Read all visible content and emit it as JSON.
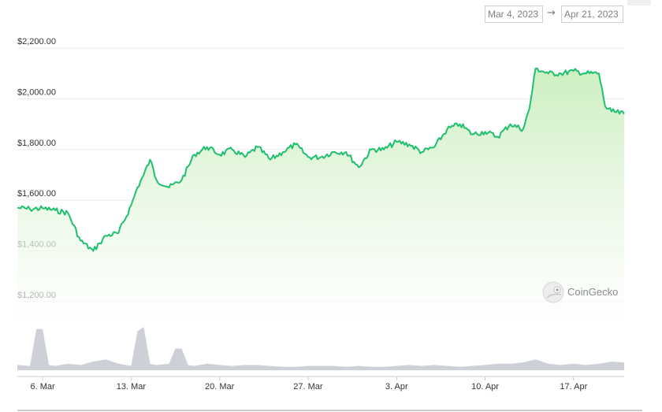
{
  "range_selector": {
    "start": "Mar 4, 2023",
    "arrow": "→",
    "end": "Apr 21, 2023"
  },
  "watermark": "CoinGecko",
  "colors": {
    "line": "#1fbf6e",
    "area_top": "#c9eebd",
    "area_bottom": "#ffffff",
    "volume": "#cdd0d6",
    "grid": "#ececec",
    "axis": "#cccccc"
  },
  "chart_data": {
    "type": "area",
    "title": "",
    "xlabel": "",
    "ylabel": "",
    "x_range": [
      "2023-03-04",
      "2023-04-21"
    ],
    "ylim": [
      1100,
      2250
    ],
    "y_ticks": [
      1200,
      1400,
      1600,
      1800,
      2000,
      2200
    ],
    "y_tick_labels": [
      "$1,200.00",
      "$1,400.00",
      "$1,600.00",
      "$1,800.00",
      "$2,000.00",
      "$2,200.00"
    ],
    "x_ticks": [
      "2023-03-06",
      "2023-03-13",
      "2023-03-20",
      "2023-03-27",
      "2023-04-03",
      "2023-04-10",
      "2023-04-17"
    ],
    "x_tick_labels": [
      "6. Mar",
      "13. Mar",
      "20. Mar",
      "27. Mar",
      "3. Apr",
      "10. Apr",
      "17. Apr"
    ],
    "grid": true,
    "series": [
      {
        "values": [
          [
            "2023-03-04",
            1570
          ],
          [
            "2023-03-05",
            1565
          ],
          [
            "2023-03-06",
            1568
          ],
          [
            "2023-03-07",
            1560
          ],
          [
            "2023-03-08",
            1550
          ],
          [
            "2023-03-09",
            1440
          ],
          [
            "2023-03-10",
            1400
          ],
          [
            "2023-03-10T12",
            1430
          ],
          [
            "2023-03-11",
            1460
          ],
          [
            "2023-03-12",
            1470
          ],
          [
            "2023-03-13",
            1580
          ],
          [
            "2023-03-13T12",
            1650
          ],
          [
            "2023-03-14",
            1700
          ],
          [
            "2023-03-14T12",
            1760
          ],
          [
            "2023-03-15",
            1680
          ],
          [
            "2023-03-16",
            1650
          ],
          [
            "2023-03-17",
            1680
          ],
          [
            "2023-03-18",
            1780
          ],
          [
            "2023-03-19",
            1810
          ],
          [
            "2023-03-20",
            1780
          ],
          [
            "2023-03-21",
            1800
          ],
          [
            "2023-03-22",
            1770
          ],
          [
            "2023-03-23",
            1810
          ],
          [
            "2023-03-24",
            1760
          ],
          [
            "2023-03-25",
            1790
          ],
          [
            "2023-03-26",
            1820
          ],
          [
            "2023-03-27",
            1770
          ],
          [
            "2023-03-28",
            1770
          ],
          [
            "2023-03-29",
            1790
          ],
          [
            "2023-03-30",
            1790
          ],
          [
            "2023-03-31",
            1730
          ],
          [
            "2023-04-01",
            1800
          ],
          [
            "2023-04-02",
            1800
          ],
          [
            "2023-04-03",
            1830
          ],
          [
            "2023-04-04",
            1820
          ],
          [
            "2023-04-05",
            1790
          ],
          [
            "2023-04-06",
            1810
          ],
          [
            "2023-04-07",
            1880
          ],
          [
            "2023-04-08",
            1900
          ],
          [
            "2023-04-09",
            1860
          ],
          [
            "2023-04-10",
            1870
          ],
          [
            "2023-04-11",
            1850
          ],
          [
            "2023-04-12",
            1900
          ],
          [
            "2023-04-13",
            1880
          ],
          [
            "2023-04-13T12",
            1960
          ],
          [
            "2023-04-14",
            2120
          ],
          [
            "2023-04-15",
            2100
          ],
          [
            "2023-04-16",
            2100
          ],
          [
            "2023-04-17",
            2110
          ],
          [
            "2023-04-18",
            2100
          ],
          [
            "2023-04-19",
            2100
          ],
          [
            "2023-04-19T12",
            1970
          ],
          [
            "2023-04-20",
            1950
          ],
          [
            "2023-04-21",
            1940
          ]
        ]
      }
    ],
    "volume": [
      [
        "2023-03-04",
        0.12
      ],
      [
        "2023-03-05",
        0.1
      ],
      [
        "2023-03-05T12",
        0.95
      ],
      [
        "2023-03-06",
        0.95
      ],
      [
        "2023-03-06T12",
        0.12
      ],
      [
        "2023-03-07",
        0.1
      ],
      [
        "2023-03-08",
        0.15
      ],
      [
        "2023-03-09",
        0.12
      ],
      [
        "2023-03-10",
        0.2
      ],
      [
        "2023-03-11",
        0.25
      ],
      [
        "2023-03-12",
        0.15
      ],
      [
        "2023-03-13",
        0.1
      ],
      [
        "2023-03-13T12",
        0.9
      ],
      [
        "2023-03-14",
        1.0
      ],
      [
        "2023-03-14T12",
        0.15
      ],
      [
        "2023-03-15",
        0.12
      ],
      [
        "2023-03-16",
        0.15
      ],
      [
        "2023-03-16T12",
        0.5
      ],
      [
        "2023-03-17",
        0.5
      ],
      [
        "2023-03-17T12",
        0.12
      ],
      [
        "2023-03-18",
        0.1
      ],
      [
        "2023-03-19",
        0.15
      ],
      [
        "2023-03-20",
        0.12
      ],
      [
        "2023-03-21",
        0.1
      ],
      [
        "2023-03-22",
        0.12
      ],
      [
        "2023-03-23",
        0.12
      ],
      [
        "2023-03-24",
        0.1
      ],
      [
        "2023-03-25",
        0.08
      ],
      [
        "2023-03-26",
        0.08
      ],
      [
        "2023-03-27",
        0.1
      ],
      [
        "2023-03-28",
        0.1
      ],
      [
        "2023-03-29",
        0.1
      ],
      [
        "2023-03-30",
        0.08
      ],
      [
        "2023-03-31",
        0.1
      ],
      [
        "2023-04-01",
        0.08
      ],
      [
        "2023-04-02",
        0.08
      ],
      [
        "2023-04-03",
        0.1
      ],
      [
        "2023-04-04",
        0.12
      ],
      [
        "2023-04-05",
        0.1
      ],
      [
        "2023-04-06",
        0.12
      ],
      [
        "2023-04-07",
        0.1
      ],
      [
        "2023-04-08",
        0.08
      ],
      [
        "2023-04-09",
        0.1
      ],
      [
        "2023-04-10",
        0.12
      ],
      [
        "2023-04-11",
        0.15
      ],
      [
        "2023-04-12",
        0.15
      ],
      [
        "2023-04-13",
        0.18
      ],
      [
        "2023-04-14",
        0.25
      ],
      [
        "2023-04-15",
        0.15
      ],
      [
        "2023-04-16",
        0.12
      ],
      [
        "2023-04-17",
        0.15
      ],
      [
        "2023-04-18",
        0.12
      ],
      [
        "2023-04-19",
        0.15
      ],
      [
        "2023-04-20",
        0.2
      ],
      [
        "2023-04-21",
        0.18
      ]
    ]
  }
}
